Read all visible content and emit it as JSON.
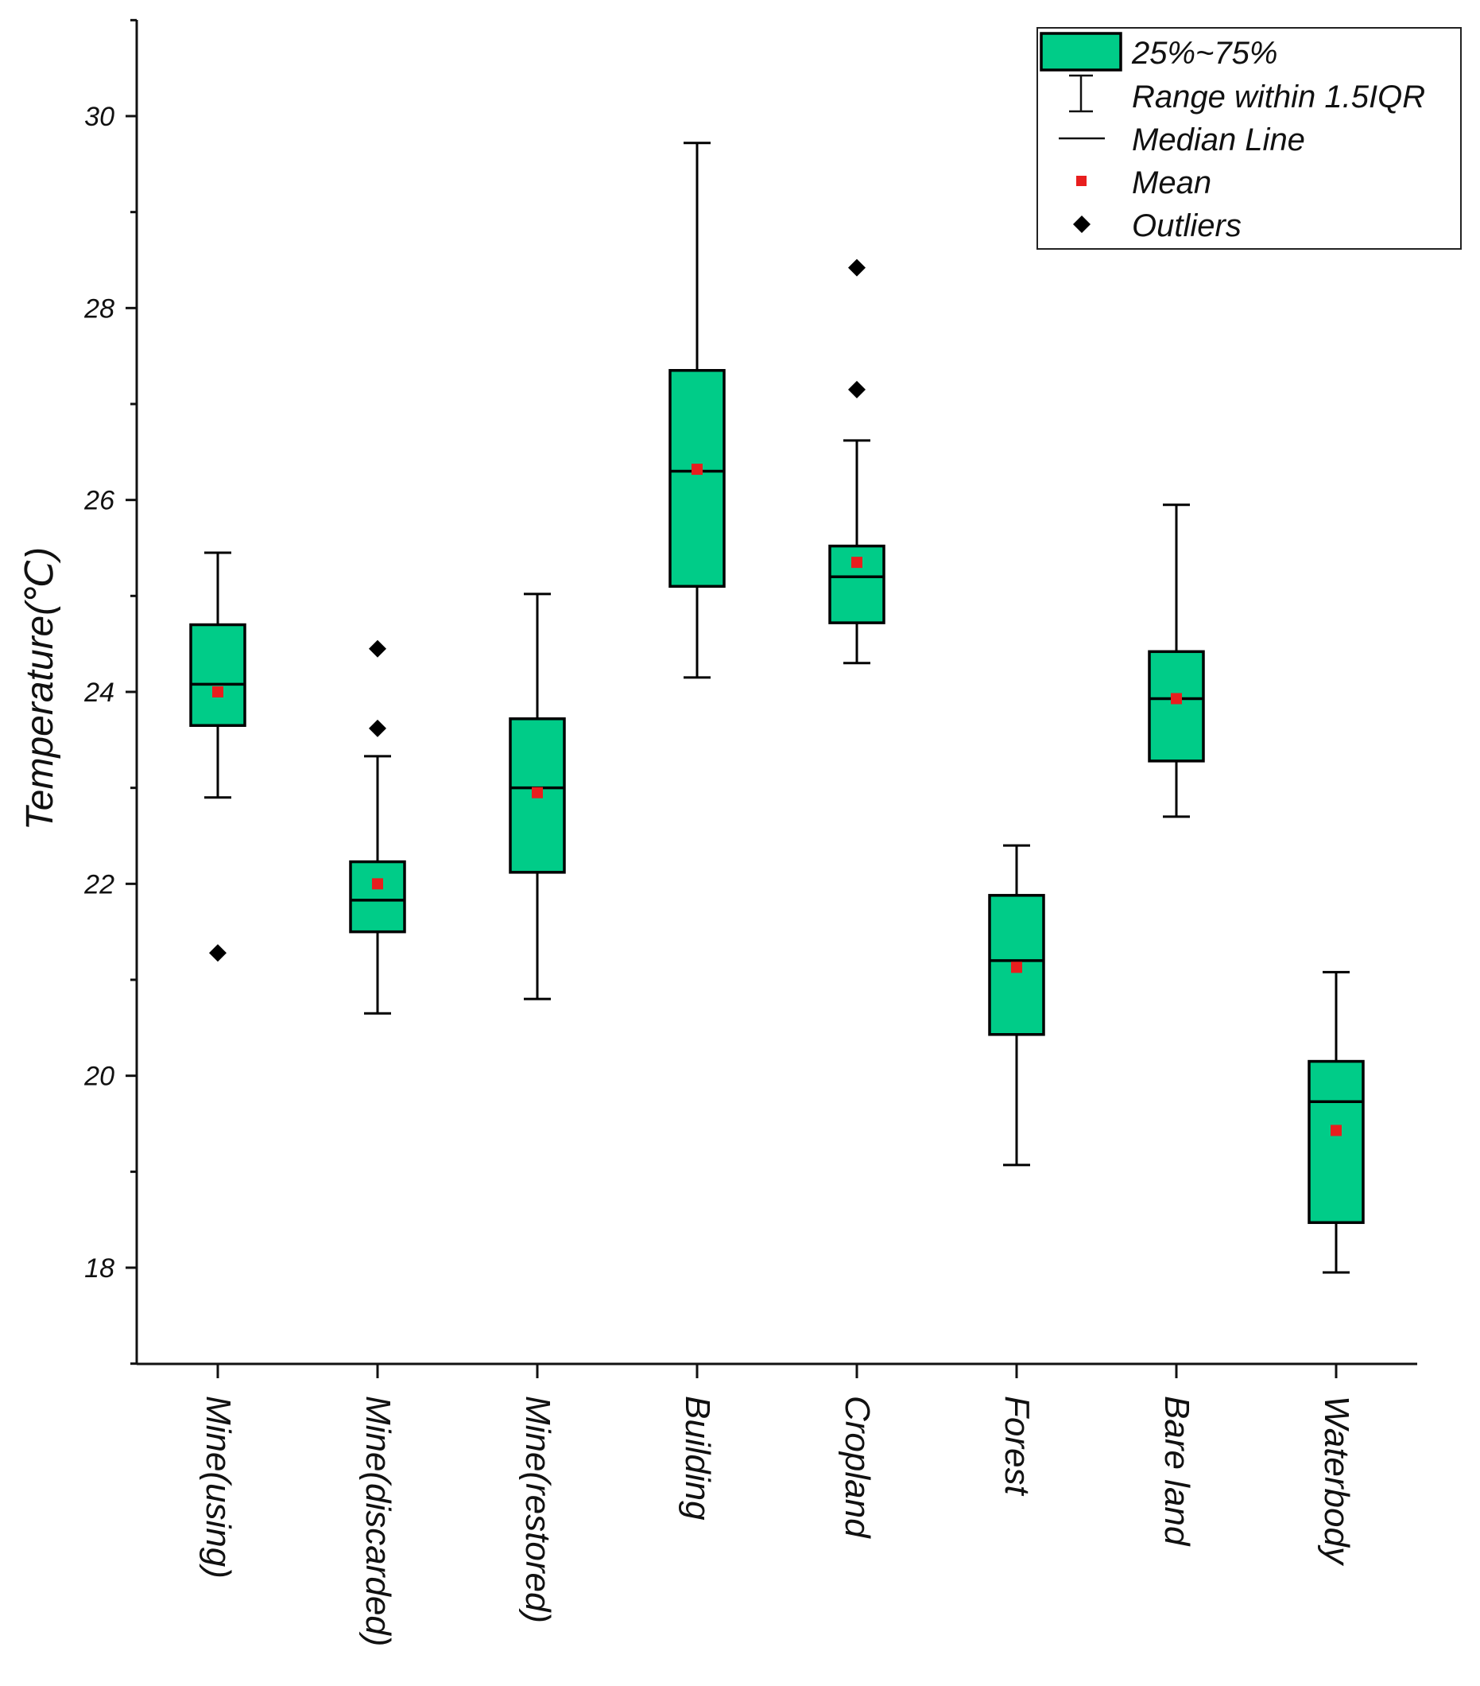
{
  "chart_data": {
    "type": "box",
    "title": "",
    "xlabel": "",
    "ylabel": "Temperature(℃)",
    "ylim": [
      17,
      31
    ],
    "yticks": [
      18,
      20,
      22,
      24,
      26,
      28,
      30
    ],
    "grid": false,
    "legend_position": "top-right",
    "colors": {
      "box_fill": "#00CC88",
      "mean_marker": "#E81E1E",
      "outline": "#000000"
    },
    "legend": [
      {
        "label": "25%~75%",
        "icon": "box-icon"
      },
      {
        "label": "Range within 1.5IQR",
        "icon": "whisker-icon"
      },
      {
        "label": "Median Line",
        "icon": "median-line-icon"
      },
      {
        "label": "Mean",
        "icon": "mean-square-icon"
      },
      {
        "label": "Outliers",
        "icon": "outlier-diamond-icon"
      }
    ],
    "categories": [
      "Mine(using)",
      "Mine(discarded)",
      "Mine(restored)",
      "Building",
      "Cropland",
      "Forest",
      "Bare land",
      "Waterbody"
    ],
    "boxes": [
      {
        "category": "Mine(using)",
        "whisker_low": 22.9,
        "q1": 23.65,
        "median": 24.08,
        "q3": 24.7,
        "whisker_high": 25.45,
        "mean": 24.0,
        "outliers": [
          21.28
        ]
      },
      {
        "category": "Mine(discarded)",
        "whisker_low": 20.65,
        "q1": 21.5,
        "median": 21.83,
        "q3": 22.23,
        "whisker_high": 23.33,
        "mean": 22.0,
        "outliers": [
          24.45,
          23.62
        ]
      },
      {
        "category": "Mine(restored)",
        "whisker_low": 20.8,
        "q1": 22.12,
        "median": 23.0,
        "q3": 23.72,
        "whisker_high": 25.02,
        "mean": 22.95,
        "outliers": []
      },
      {
        "category": "Building",
        "whisker_low": 24.15,
        "q1": 25.1,
        "median": 26.3,
        "q3": 27.35,
        "whisker_high": 29.72,
        "mean": 26.32,
        "outliers": []
      },
      {
        "category": "Cropland",
        "whisker_low": 24.3,
        "q1": 24.72,
        "median": 25.2,
        "q3": 25.52,
        "whisker_high": 26.62,
        "mean": 25.35,
        "outliers": [
          28.42,
          27.15
        ]
      },
      {
        "category": "Forest",
        "whisker_low": 19.07,
        "q1": 20.43,
        "median": 21.2,
        "q3": 21.88,
        "whisker_high": 22.4,
        "mean": 21.13,
        "outliers": []
      },
      {
        "category": "Bare land",
        "whisker_low": 22.7,
        "q1": 23.28,
        "median": 23.93,
        "q3": 24.42,
        "whisker_high": 25.95,
        "mean": 23.93,
        "outliers": []
      },
      {
        "category": "Waterbody",
        "whisker_low": 17.95,
        "q1": 18.47,
        "median": 19.73,
        "q3": 20.15,
        "whisker_high": 21.08,
        "mean": 19.43,
        "outliers": []
      }
    ]
  }
}
